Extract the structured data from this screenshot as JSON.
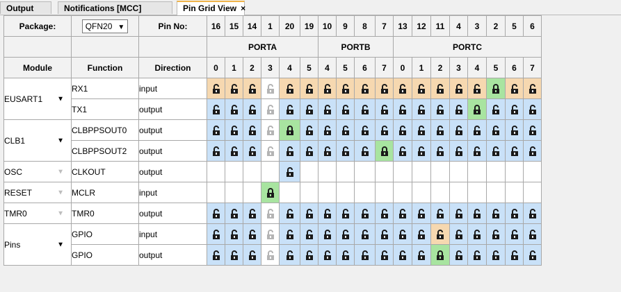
{
  "tabs": [
    {
      "label": "Output",
      "active": false,
      "closable": false
    },
    {
      "label": "Notifications [MCC]",
      "active": false,
      "closable": false
    },
    {
      "label": "Pin Grid View",
      "active": true,
      "closable": true
    }
  ],
  "tab_close_glyph": "×",
  "header": {
    "package_label": "Package:",
    "package_value": "QFN20",
    "pin_no_label": "Pin No:",
    "pin_numbers": [
      "16",
      "15",
      "14",
      "1",
      "20",
      "19",
      "10",
      "9",
      "8",
      "7",
      "13",
      "12",
      "11",
      "4",
      "3",
      "2",
      "5",
      "6"
    ],
    "ports": [
      {
        "name": "PORTA",
        "span": 6
      },
      {
        "name": "PORTB",
        "span": 4
      },
      {
        "name": "PORTC",
        "span": 8
      }
    ],
    "module_label": "Module",
    "function_label": "Function",
    "direction_label": "Direction",
    "bits": [
      "0",
      "1",
      "2",
      "3",
      "4",
      "5",
      "4",
      "5",
      "6",
      "7",
      "0",
      "1",
      "2",
      "3",
      "4",
      "5",
      "6",
      "7"
    ]
  },
  "rows": [
    {
      "module": "EUSART1",
      "module_rows": 2,
      "module_arrow": "dark",
      "function": "RX1",
      "direction": "input",
      "cells": [
        "tan",
        "tan",
        "tan",
        "grey",
        "tan",
        "tan",
        "tan",
        "tan",
        "tan",
        "tan",
        "tan",
        "tan",
        "tan",
        "tan",
        "tan",
        "green",
        "tan",
        "tan"
      ]
    },
    {
      "function": "TX1",
      "direction": "output",
      "cells": [
        "blue",
        "blue",
        "blue",
        "grey",
        "blue",
        "blue",
        "blue",
        "blue",
        "blue",
        "blue",
        "blue",
        "blue",
        "blue",
        "blue",
        "green",
        "blue",
        "blue",
        "blue"
      ]
    },
    {
      "module": "CLB1",
      "module_rows": 2,
      "module_arrow": "dark",
      "function": "CLBPPSOUT0",
      "direction": "output",
      "cells": [
        "blue",
        "blue",
        "blue",
        "grey",
        "green",
        "blue",
        "blue",
        "blue",
        "blue",
        "blue",
        "blue",
        "blue",
        "blue",
        "blue",
        "blue",
        "blue",
        "blue",
        "blue"
      ]
    },
    {
      "function": "CLBPPSOUT2",
      "direction": "output",
      "cells": [
        "blue",
        "blue",
        "blue",
        "grey",
        "blue",
        "blue",
        "blue",
        "blue",
        "blue",
        "green",
        "blue",
        "blue",
        "blue",
        "blue",
        "blue",
        "blue",
        "blue",
        "blue"
      ]
    },
    {
      "module": "OSC",
      "module_rows": 1,
      "module_arrow": "dim",
      "function": "CLKOUT",
      "direction": "output",
      "cells": [
        "empty",
        "empty",
        "empty",
        "empty",
        "blue",
        "empty",
        "empty",
        "empty",
        "empty",
        "empty",
        "empty",
        "empty",
        "empty",
        "empty",
        "empty",
        "empty",
        "empty",
        "empty"
      ]
    },
    {
      "module": "RESET",
      "module_rows": 1,
      "module_arrow": "dim",
      "function": "MCLR",
      "direction": "input",
      "cells": [
        "empty",
        "empty",
        "empty",
        "green",
        "empty",
        "empty",
        "empty",
        "empty",
        "empty",
        "empty",
        "empty",
        "empty",
        "empty",
        "empty",
        "empty",
        "empty",
        "empty",
        "empty"
      ]
    },
    {
      "module": "TMR0",
      "module_rows": 1,
      "module_arrow": "dim",
      "function": "TMR0",
      "direction": "output",
      "cells": [
        "blue",
        "blue",
        "blue",
        "grey",
        "blue",
        "blue",
        "blue",
        "blue",
        "blue",
        "blue",
        "blue",
        "blue",
        "blue",
        "blue",
        "blue",
        "blue",
        "blue",
        "blue"
      ]
    },
    {
      "module": "Pins",
      "module_rows": 2,
      "module_arrow": "dark",
      "function": "GPIO",
      "direction": "input",
      "cells": [
        "blue",
        "blue",
        "blue",
        "grey",
        "blue",
        "blue",
        "blue",
        "blue",
        "blue",
        "blue",
        "blue",
        "blue",
        "tan",
        "blue",
        "blue",
        "blue",
        "blue",
        "blue"
      ]
    },
    {
      "function": "GPIO",
      "direction": "output",
      "cells": [
        "blue",
        "blue",
        "blue",
        "grey",
        "blue",
        "blue",
        "blue",
        "blue",
        "blue",
        "blue",
        "blue",
        "blue",
        "green",
        "blue",
        "blue",
        "blue",
        "blue",
        "blue"
      ]
    }
  ],
  "colors": {
    "blue": "#c9e1f8",
    "tan": "#f6d8b0",
    "green": "#a8e4a0",
    "tab_accent": "#f0b44a"
  },
  "icons": {
    "unlocked": "unlocked-padlock-icon",
    "locked": "locked-padlock-icon",
    "dropdown": "chevron-down-icon"
  }
}
